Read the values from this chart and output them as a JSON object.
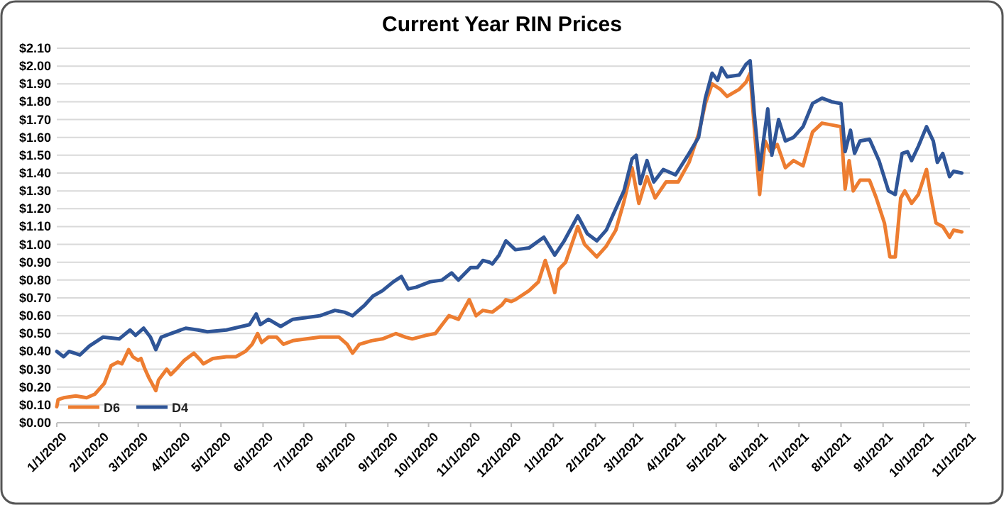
{
  "chart_data": {
    "type": "line",
    "title": "Current Year RIN Prices",
    "xlim": [
      "2020-01-01",
      "2021-11-04"
    ],
    "xticks": [
      {
        "value": "2020-01-01",
        "label": "1/1/2020"
      },
      {
        "value": "2020-02-01",
        "label": "2/1/2020"
      },
      {
        "value": "2020-03-01",
        "label": "3/1/2020"
      },
      {
        "value": "2020-04-01",
        "label": "4/1/2020"
      },
      {
        "value": "2020-05-01",
        "label": "5/1/2020"
      },
      {
        "value": "2020-06-01",
        "label": "6/1/2020"
      },
      {
        "value": "2020-07-01",
        "label": "7/1/2020"
      },
      {
        "value": "2020-08-01",
        "label": "8/1/2020"
      },
      {
        "value": "2020-09-01",
        "label": "9/1/2020"
      },
      {
        "value": "2020-10-01",
        "label": "10/1/2020"
      },
      {
        "value": "2020-11-01",
        "label": "11/1/2020"
      },
      {
        "value": "2020-12-01",
        "label": "12/1/2020"
      },
      {
        "value": "2021-01-01",
        "label": "1/1/2021"
      },
      {
        "value": "2021-02-01",
        "label": "2/1/2021"
      },
      {
        "value": "2021-03-01",
        "label": "3/1/2021"
      },
      {
        "value": "2021-04-01",
        "label": "4/1/2021"
      },
      {
        "value": "2021-05-01",
        "label": "5/1/2021"
      },
      {
        "value": "2021-06-01",
        "label": "6/1/2021"
      },
      {
        "value": "2021-07-01",
        "label": "7/1/2021"
      },
      {
        "value": "2021-08-01",
        "label": "8/1/2021"
      },
      {
        "value": "2021-09-01",
        "label": "9/1/2021"
      },
      {
        "value": "2021-10-01",
        "label": "10/1/2021"
      },
      {
        "value": "2021-11-01",
        "label": "11/1/2021"
      }
    ],
    "ylim": [
      0,
      2.1
    ],
    "yticks": [
      {
        "value": 0,
        "label": "$0.00"
      },
      {
        "value": 0.1,
        "label": "$0.10"
      },
      {
        "value": 0.2,
        "label": "$0.20"
      },
      {
        "value": 0.3,
        "label": "$0.30"
      },
      {
        "value": 0.4,
        "label": "$0.40"
      },
      {
        "value": 0.5,
        "label": "$0.50"
      },
      {
        "value": 0.6,
        "label": "$0.60"
      },
      {
        "value": 0.7,
        "label": "$0.70"
      },
      {
        "value": 0.8,
        "label": "$0.80"
      },
      {
        "value": 0.9,
        "label": "$0.90"
      },
      {
        "value": 1,
        "label": "$1.00"
      },
      {
        "value": 1.1,
        "label": "$1.10"
      },
      {
        "value": 1.2,
        "label": "$1.20"
      },
      {
        "value": 1.3,
        "label": "$1.30"
      },
      {
        "value": 1.4,
        "label": "$1.40"
      },
      {
        "value": 1.5,
        "label": "$1.50"
      },
      {
        "value": 1.6,
        "label": "$1.60"
      },
      {
        "value": 1.7,
        "label": "$1.70"
      },
      {
        "value": 1.8,
        "label": "$1.80"
      },
      {
        "value": 1.9,
        "label": "$1.90"
      },
      {
        "value": 2,
        "label": "$2.00"
      },
      {
        "value": 2.1,
        "label": "$2.10"
      }
    ],
    "grid": "y",
    "legend": "bottom left",
    "marker": "none",
    "line_style": "solid",
    "series": [
      {
        "name": "D6",
        "color": "#ed7d31",
        "x": [
          "2020-01-01",
          "2020-01-02",
          "2020-01-06",
          "2020-01-15",
          "2020-01-23",
          "2020-01-29",
          "2020-02-05",
          "2020-02-07",
          "2020-02-10",
          "2020-02-15",
          "2020-02-18",
          "2020-02-23",
          "2020-02-26",
          "2020-03-01",
          "2020-03-03",
          "2020-03-06",
          "2020-03-09",
          "2020-03-14",
          "2020-03-16",
          "2020-03-22",
          "2020-03-25",
          "2020-03-29",
          "2020-04-04",
          "2020-04-11",
          "2020-04-16",
          "2020-04-18",
          "2020-04-25",
          "2020-05-05",
          "2020-05-12",
          "2020-05-19",
          "2020-05-24",
          "2020-05-28",
          "2020-05-31",
          "2020-06-05",
          "2020-06-11",
          "2020-06-16",
          "2020-06-23",
          "2020-07-03",
          "2020-07-13",
          "2020-07-27",
          "2020-08-02",
          "2020-08-06",
          "2020-08-11",
          "2020-08-20",
          "2020-08-28",
          "2020-09-07",
          "2020-09-14",
          "2020-09-19",
          "2020-09-29",
          "2020-10-06",
          "2020-10-11",
          "2020-10-16",
          "2020-10-23",
          "2020-10-31",
          "2020-11-05",
          "2020-11-10",
          "2020-11-17",
          "2020-11-24",
          "2020-11-27",
          "2020-12-01",
          "2020-12-04",
          "2020-12-14",
          "2020-12-21",
          "2020-12-26",
          "2020-12-30",
          "2021-01-02",
          "2021-01-05",
          "2021-01-10",
          "2021-01-19",
          "2021-01-24",
          "2021-02-02",
          "2021-02-09",
          "2021-02-16",
          "2021-02-22",
          "2021-02-28",
          "2021-03-05",
          "2021-03-11",
          "2021-03-17",
          "2021-03-25",
          "2021-04-03",
          "2021-04-11",
          "2021-04-18",
          "2021-04-23",
          "2021-04-28",
          "2021-05-04",
          "2021-05-09",
          "2021-05-18",
          "2021-05-23",
          "2021-05-26",
          "2021-05-28",
          "2021-06-02",
          "2021-06-06",
          "2021-06-10",
          "2021-06-15",
          "2021-06-21",
          "2021-06-27",
          "2021-07-04",
          "2021-07-11",
          "2021-07-18",
          "2021-07-25",
          "2021-08-01",
          "2021-08-04",
          "2021-08-07",
          "2021-08-10",
          "2021-08-15",
          "2021-08-22",
          "2021-08-27",
          "2021-09-02",
          "2021-09-06",
          "2021-09-10",
          "2021-09-14",
          "2021-09-17",
          "2021-09-22",
          "2021-09-27",
          "2021-10-03",
          "2021-10-06",
          "2021-10-10",
          "2021-10-15",
          "2021-10-20",
          "2021-10-23",
          "2021-10-29"
        ],
        "values": [
          0.09,
          0.13,
          0.14,
          0.15,
          0.14,
          0.16,
          0.22,
          0.26,
          0.32,
          0.34,
          0.33,
          0.41,
          0.37,
          0.35,
          0.36,
          0.3,
          0.25,
          0.18,
          0.24,
          0.3,
          0.27,
          0.3,
          0.35,
          0.39,
          0.35,
          0.33,
          0.36,
          0.37,
          0.37,
          0.4,
          0.44,
          0.5,
          0.45,
          0.48,
          0.48,
          0.44,
          0.46,
          0.47,
          0.48,
          0.48,
          0.44,
          0.39,
          0.44,
          0.46,
          0.47,
          0.5,
          0.48,
          0.47,
          0.49,
          0.5,
          0.55,
          0.6,
          0.58,
          0.69,
          0.6,
          0.63,
          0.62,
          0.66,
          0.69,
          0.68,
          0.69,
          0.74,
          0.79,
          0.91,
          0.81,
          0.73,
          0.86,
          0.9,
          1.1,
          1,
          0.93,
          0.99,
          1.08,
          1.24,
          1.43,
          1.23,
          1.38,
          1.26,
          1.35,
          1.35,
          1.46,
          1.62,
          1.79,
          1.9,
          1.87,
          1.83,
          1.87,
          1.91,
          1.96,
          1.76,
          1.28,
          1.58,
          1.52,
          1.56,
          1.43,
          1.47,
          1.44,
          1.63,
          1.68,
          1.67,
          1.66,
          1.31,
          1.47,
          1.3,
          1.36,
          1.36,
          1.26,
          1.12,
          0.93,
          0.93,
          1.26,
          1.3,
          1.23,
          1.28,
          1.42,
          1.28,
          1.12,
          1.1,
          1.04,
          1.08,
          1.07
        ]
      },
      {
        "name": "D4",
        "color": "#2f5597",
        "x": [
          "2020-01-01",
          "2020-01-06",
          "2020-01-10",
          "2020-01-18",
          "2020-01-25",
          "2020-02-04",
          "2020-02-16",
          "2020-02-24",
          "2020-02-28",
          "2020-03-05",
          "2020-03-10",
          "2020-03-14",
          "2020-03-18",
          "2020-03-25",
          "2020-04-05",
          "2020-04-14",
          "2020-04-21",
          "2020-05-05",
          "2020-05-22",
          "2020-05-27",
          "2020-05-30",
          "2020-06-05",
          "2020-06-14",
          "2020-06-23",
          "2020-07-03",
          "2020-07-13",
          "2020-07-24",
          "2020-07-31",
          "2020-08-06",
          "2020-08-15",
          "2020-08-21",
          "2020-08-28",
          "2020-09-05",
          "2020-09-11",
          "2020-09-16",
          "2020-09-22",
          "2020-10-02",
          "2020-10-11",
          "2020-10-18",
          "2020-10-23",
          "2020-11-01",
          "2020-11-06",
          "2020-11-10",
          "2020-11-15",
          "2020-11-17",
          "2020-11-22",
          "2020-11-27",
          "2020-12-04",
          "2020-12-14",
          "2020-12-25",
          "2021-01-02",
          "2021-01-09",
          "2021-01-19",
          "2021-01-26",
          "2021-02-02",
          "2021-02-09",
          "2021-02-16",
          "2021-02-22",
          "2021-02-28",
          "2021-03-03",
          "2021-03-06",
          "2021-03-11",
          "2021-03-16",
          "2021-03-23",
          "2021-04-01",
          "2021-04-11",
          "2021-04-18",
          "2021-04-23",
          "2021-04-28",
          "2021-05-02",
          "2021-05-05",
          "2021-05-09",
          "2021-05-18",
          "2021-05-23",
          "2021-05-26",
          "2021-05-29",
          "2021-06-02",
          "2021-06-08",
          "2021-06-11",
          "2021-06-16",
          "2021-06-21",
          "2021-06-27",
          "2021-07-04",
          "2021-07-11",
          "2021-07-18",
          "2021-07-25",
          "2021-08-01",
          "2021-08-04",
          "2021-08-08",
          "2021-08-11",
          "2021-08-15",
          "2021-08-22",
          "2021-08-29",
          "2021-09-05",
          "2021-09-10",
          "2021-09-15",
          "2021-09-19",
          "2021-09-22",
          "2021-09-27",
          "2021-10-03",
          "2021-10-08",
          "2021-10-11",
          "2021-10-15",
          "2021-10-20",
          "2021-10-23",
          "2021-10-29"
        ],
        "values": [
          0.4,
          0.37,
          0.4,
          0.38,
          0.43,
          0.48,
          0.47,
          0.52,
          0.49,
          0.53,
          0.48,
          0.41,
          0.48,
          0.5,
          0.53,
          0.52,
          0.51,
          0.52,
          0.55,
          0.61,
          0.55,
          0.58,
          0.54,
          0.58,
          0.59,
          0.6,
          0.63,
          0.62,
          0.6,
          0.66,
          0.71,
          0.74,
          0.79,
          0.82,
          0.75,
          0.76,
          0.79,
          0.8,
          0.84,
          0.8,
          0.87,
          0.87,
          0.91,
          0.9,
          0.89,
          0.94,
          1.02,
          0.97,
          0.98,
          1.04,
          0.94,
          1.02,
          1.16,
          1.06,
          1.02,
          1.08,
          1.2,
          1.3,
          1.48,
          1.5,
          1.34,
          1.47,
          1.35,
          1.42,
          1.39,
          1.51,
          1.6,
          1.82,
          1.96,
          1.92,
          1.99,
          1.94,
          1.95,
          2.01,
          2.03,
          1.74,
          1.42,
          1.76,
          1.5,
          1.7,
          1.58,
          1.6,
          1.66,
          1.79,
          1.82,
          1.8,
          1.79,
          1.52,
          1.64,
          1.51,
          1.58,
          1.59,
          1.47,
          1.3,
          1.28,
          1.51,
          1.52,
          1.47,
          1.55,
          1.66,
          1.58,
          1.46,
          1.51,
          1.38,
          1.41,
          1.4
        ]
      }
    ]
  }
}
